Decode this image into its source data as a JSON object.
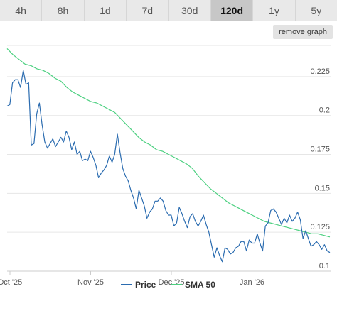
{
  "tabs": [
    {
      "label": "4h",
      "active": false
    },
    {
      "label": "8h",
      "active": false
    },
    {
      "label": "1d",
      "active": false
    },
    {
      "label": "7d",
      "active": false
    },
    {
      "label": "30d",
      "active": false
    },
    {
      "label": "120d",
      "active": true
    },
    {
      "label": "1y",
      "active": false
    },
    {
      "label": "5y",
      "active": false
    }
  ],
  "remove_graph_label": "remove graph",
  "colors": {
    "price": "#2b6cb0",
    "sma": "#4cd080",
    "grid": "#e6e6e6"
  },
  "chart_data": {
    "type": "line",
    "x_tick_labels": [
      "Oct '25",
      "Nov '25",
      "Dec '25",
      "Jan '26"
    ],
    "x_tick_index": [
      0,
      30,
      60,
      90
    ],
    "y_ticks": [
      "0.1",
      "0.125",
      "0.15",
      "0.175",
      "0.2",
      "0.225"
    ],
    "ylim": [
      0.1,
      0.245
    ],
    "series": [
      {
        "name": "Price",
        "values": [
          0.206,
          0.207,
          0.221,
          0.223,
          0.223,
          0.218,
          0.229,
          0.22,
          0.221,
          0.181,
          0.182,
          0.201,
          0.208,
          0.194,
          0.183,
          0.179,
          0.182,
          0.185,
          0.18,
          0.183,
          0.186,
          0.183,
          0.19,
          0.186,
          0.178,
          0.183,
          0.175,
          0.177,
          0.171,
          0.172,
          0.171,
          0.177,
          0.173,
          0.168,
          0.16,
          0.163,
          0.165,
          0.168,
          0.174,
          0.17,
          0.175,
          0.188,
          0.176,
          0.166,
          0.161,
          0.158,
          0.152,
          0.147,
          0.14,
          0.152,
          0.147,
          0.142,
          0.134,
          0.138,
          0.14,
          0.145,
          0.145,
          0.147,
          0.145,
          0.139,
          0.136,
          0.136,
          0.129,
          0.131,
          0.141,
          0.137,
          0.132,
          0.128,
          0.135,
          0.137,
          0.132,
          0.129,
          0.132,
          0.136,
          0.13,
          0.125,
          0.117,
          0.109,
          0.115,
          0.11,
          0.106,
          0.115,
          0.114,
          0.111,
          0.112,
          0.115,
          0.116,
          0.119,
          0.119,
          0.113,
          0.12,
          0.118,
          0.118,
          0.124,
          0.118,
          0.113,
          0.129,
          0.131,
          0.139,
          0.14,
          0.138,
          0.134,
          0.13,
          0.134,
          0.131,
          0.136,
          0.132,
          0.134,
          0.138,
          0.133,
          0.121,
          0.126,
          0.121,
          0.116,
          0.117,
          0.119,
          0.117,
          0.114,
          0.117,
          0.113,
          0.112
        ],
        "color": "#2b6cb0"
      },
      {
        "name": "SMA 50",
        "values": [
          0.243,
          0.239,
          0.236,
          0.233,
          0.232,
          0.23,
          0.229,
          0.227,
          0.224,
          0.222,
          0.218,
          0.215,
          0.213,
          0.211,
          0.209,
          0.208,
          0.206,
          0.204,
          0.202,
          0.198,
          0.194,
          0.19,
          0.186,
          0.183,
          0.181,
          0.178,
          0.177,
          0.175,
          0.173,
          0.171,
          0.169,
          0.166,
          0.161,
          0.157,
          0.153,
          0.15,
          0.147,
          0.144,
          0.142,
          0.14,
          0.138,
          0.136,
          0.134,
          0.132,
          0.131,
          0.13,
          0.129,
          0.128,
          0.127,
          0.126,
          0.125,
          0.124,
          0.124,
          0.123,
          0.122
        ],
        "color": "#4cd080"
      }
    ],
    "legend_position": "bottom-center",
    "grid": true
  }
}
